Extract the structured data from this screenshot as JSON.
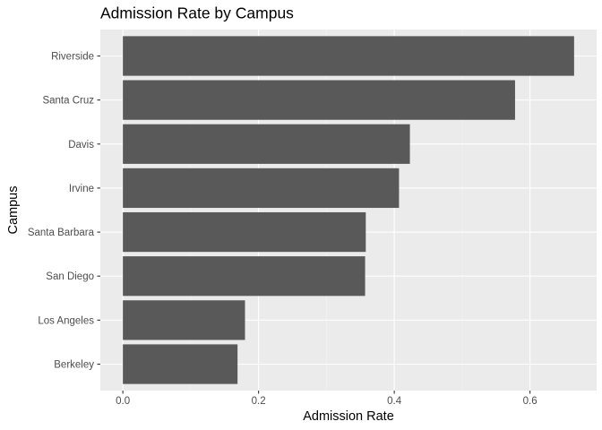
{
  "chart_data": {
    "type": "bar",
    "orientation": "horizontal",
    "title": "Admission Rate by Campus",
    "xlabel": "Admission Rate",
    "ylabel": "Campus",
    "categories": [
      "Riverside",
      "Santa Cruz",
      "Davis",
      "Irvine",
      "Santa Barbara",
      "San Diego",
      "Los Angeles",
      "Berkeley"
    ],
    "values": [
      0.665,
      0.578,
      0.423,
      0.407,
      0.358,
      0.357,
      0.18,
      0.169
    ],
    "xlim": [
      -0.0332,
      0.6982
    ],
    "xticks": [
      0.0,
      0.2,
      0.4,
      0.6
    ],
    "xtick_labels": [
      "0.0",
      "0.2",
      "0.4",
      "0.6"
    ],
    "grid": true,
    "colors": {
      "bar": "#595959",
      "panel": "#ebebeb",
      "grid_major": "#ffffff",
      "grid_minor": "#f5f5f5",
      "tick": "#333333"
    }
  }
}
